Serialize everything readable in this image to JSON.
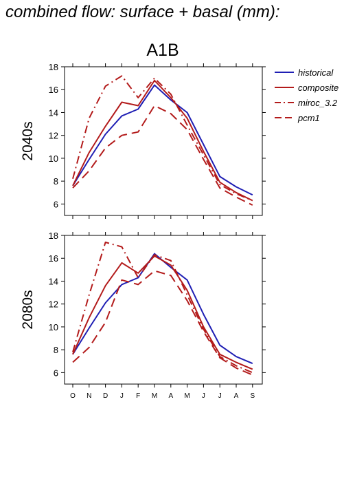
{
  "figure": {
    "title": "combined flow: surface + basal (mm):",
    "scenario": "A1B"
  },
  "colors": {
    "historical": "#1f1fb4",
    "scenario": "#b31b1b"
  },
  "chart_data": [
    {
      "type": "line",
      "panel_label": "2040s",
      "categories": [
        "O",
        "N",
        "D",
        "J",
        "F",
        "M",
        "A",
        "M",
        "J",
        "J",
        "A",
        "S"
      ],
      "ylim": [
        5,
        18
      ],
      "yticks": [
        6,
        8,
        10,
        12,
        14,
        16,
        18
      ],
      "grid": false,
      "legend": "top-right, outside plot",
      "series": [
        {
          "name": "historical",
          "style": "solid",
          "color": "#1f1fb4",
          "values": [
            7.6,
            9.9,
            12.1,
            13.7,
            14.3,
            16.4,
            15.1,
            14.0,
            11.2,
            8.4,
            7.5,
            6.8
          ]
        },
        {
          "name": "composite",
          "style": "solid",
          "color": "#b31b1b",
          "values": [
            7.6,
            10.5,
            12.8,
            14.9,
            14.6,
            16.8,
            15.3,
            13.5,
            10.6,
            7.9,
            7.0,
            6.3
          ]
        },
        {
          "name": "miroc_3.2",
          "style": "dashdot",
          "color": "#b31b1b",
          "values": [
            8.2,
            13.5,
            16.3,
            17.2,
            15.3,
            17.0,
            15.6,
            12.9,
            10.3,
            7.7,
            6.9,
            6.3
          ]
        },
        {
          "name": "pcm1",
          "style": "dashed",
          "color": "#b31b1b",
          "values": [
            7.4,
            8.9,
            10.9,
            12.0,
            12.3,
            14.6,
            13.9,
            12.5,
            9.9,
            7.4,
            6.6,
            5.9
          ]
        }
      ]
    },
    {
      "type": "line",
      "panel_label": "2080s",
      "categories": [
        "O",
        "N",
        "D",
        "J",
        "F",
        "M",
        "A",
        "M",
        "J",
        "J",
        "A",
        "S"
      ],
      "ylim": [
        5,
        18
      ],
      "yticks": [
        6,
        8,
        10,
        12,
        14,
        16,
        18
      ],
      "grid": false,
      "series": [
        {
          "name": "historical",
          "style": "solid",
          "color": "#1f1fb4",
          "values": [
            7.6,
            9.9,
            12.1,
            13.7,
            14.3,
            16.4,
            15.2,
            14.1,
            11.1,
            8.4,
            7.4,
            6.8
          ]
        },
        {
          "name": "composite",
          "style": "solid",
          "color": "#b31b1b",
          "values": [
            7.6,
            10.8,
            13.6,
            15.6,
            14.7,
            16.2,
            15.4,
            13.2,
            10.0,
            7.6,
            6.9,
            6.3
          ]
        },
        {
          "name": "miroc_3.2",
          "style": "dashdot",
          "color": "#b31b1b",
          "values": [
            7.8,
            12.8,
            17.4,
            17.0,
            14.3,
            16.3,
            15.8,
            12.8,
            9.8,
            7.4,
            6.6,
            6.0
          ]
        },
        {
          "name": "pcm1",
          "style": "dashed",
          "color": "#b31b1b",
          "values": [
            6.9,
            8.2,
            10.4,
            14.1,
            13.7,
            14.9,
            14.5,
            12.3,
            9.6,
            7.3,
            6.4,
            5.8
          ]
        }
      ]
    }
  ]
}
